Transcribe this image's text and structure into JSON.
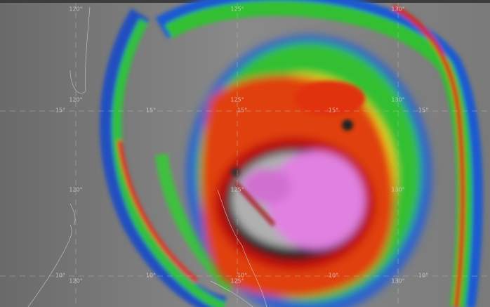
{
  "image": {
    "type": "infrared satellite image of a tropical cyclone",
    "colors": {
      "cloud_free": "#707070",
      "cold_top_magenta": "#e07ae0",
      "red_band": "#d81010",
      "yellow_band": "#f0e020",
      "green_band": "#30c030",
      "blue_edge": "#1030a0"
    },
    "graticule": {
      "longitude_labels": [
        "120°",
        "125°",
        "130°"
      ],
      "latitude_labels": [
        "15°",
        "10°"
      ]
    }
  }
}
